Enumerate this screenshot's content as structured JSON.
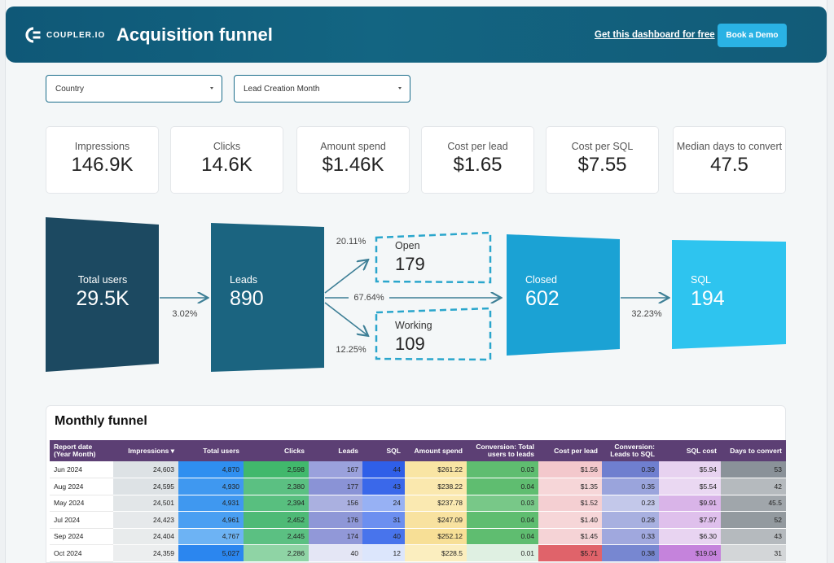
{
  "header": {
    "logo_text": "COUPLER.IO",
    "title": "Acquisition funnel",
    "link_label": "Get this dashboard for free",
    "demo_label": "Book a Demo"
  },
  "filters": {
    "country": "Country",
    "lead_month": "Lead Creation Month"
  },
  "kpis": [
    {
      "label": "Impressions",
      "value": "146.9K"
    },
    {
      "label": "Clicks",
      "value": "14.6K"
    },
    {
      "label": "Amount spend",
      "value": "$1.46K"
    },
    {
      "label": "Cost per lead",
      "value": "$1.65"
    },
    {
      "label": "Cost per SQL",
      "value": "$7.55"
    },
    {
      "label": "Median days to convert",
      "value": "47.5"
    }
  ],
  "funnel": {
    "total_users": {
      "label": "Total users",
      "value": "29.5K"
    },
    "leads": {
      "label": "Leads",
      "value": "890"
    },
    "open": {
      "label": "Open",
      "value": "179"
    },
    "working": {
      "label": "Working",
      "value": "109"
    },
    "closed": {
      "label": "Closed",
      "value": "602"
    },
    "sql": {
      "label": "SQL",
      "value": "194"
    },
    "rate_users_leads": "3.02%",
    "rate_open": "20.11%",
    "rate_closed": "67.64%",
    "rate_working": "12.25%",
    "rate_sql": "32.23%",
    "colors": {
      "total_users": "#1c4961",
      "leads": "#1b6480",
      "closed": "#1ba2d4",
      "sql": "#2ec4ef",
      "dashed": "#2aa6cc"
    }
  },
  "monthly": {
    "title": "Monthly funnel",
    "headers": [
      "Report date (Year Month)",
      "Impressions ▾",
      "Total users",
      "Clicks",
      "Leads",
      "SQL",
      "Amount spend",
      "Conversion: Total users to leads",
      "Cost per lead",
      "Conversion: Leads to SQL",
      "SQL cost",
      "Days to convert"
    ],
    "rows": [
      [
        "Jun 2024",
        "24,603",
        "4,870",
        "2,598",
        "167",
        "44",
        "$261.22",
        "0.03",
        "$1.56",
        "0.39",
        "$5.94",
        "53"
      ],
      [
        "Aug 2024",
        "24,595",
        "4,930",
        "2,380",
        "177",
        "43",
        "$238.22",
        "0.04",
        "$1.35",
        "0.35",
        "$5.54",
        "42"
      ],
      [
        "May 2024",
        "24,501",
        "4,931",
        "2,394",
        "156",
        "24",
        "$237.78",
        "0.03",
        "$1.52",
        "0.23",
        "$9.91",
        "45.5"
      ],
      [
        "Jul 2024",
        "24,423",
        "4,961",
        "2,452",
        "176",
        "31",
        "$247.09",
        "0.04",
        "$1.40",
        "0.28",
        "$7.97",
        "52"
      ],
      [
        "Sep 2024",
        "24,404",
        "4,767",
        "2,445",
        "174",
        "40",
        "$252.12",
        "0.04",
        "$1.45",
        "0.33",
        "$6.30",
        "43"
      ],
      [
        "Oct 2024",
        "24,359",
        "5,027",
        "2,286",
        "40",
        "12",
        "$228.5",
        "0.01",
        "$5.71",
        "0.38",
        "$19.04",
        "31"
      ]
    ],
    "cell_colors": [
      [
        "#dde2e5",
        "#2f8ff0",
        "#41b86c",
        "#9aa1dc",
        "#2f5fe8",
        "#f9e5a4",
        "#5fbd70",
        "#f3c8cc",
        "#6f7fcf",
        "#e7d2f0",
        "#8a9299"
      ],
      [
        "#dde2e5",
        "#3f98f0",
        "#5bc082",
        "#8a93d6",
        "#3a68ea",
        "#fae8ae",
        "#5fbd70",
        "#f6d6d8",
        "#9aa4dc",
        "#ead8f2",
        "#b5babe"
      ],
      [
        "#e2e6e8",
        "#3f98f0",
        "#58bf7f",
        "#aab0e0",
        "#97b1f4",
        "#fae9b1",
        "#78c888",
        "#f4cfd2",
        "#c3c8ea",
        "#d9b4e8",
        "#a0a6ab"
      ],
      [
        "#e6e9eb",
        "#4a9ff2",
        "#4eba76",
        "#8e97d7",
        "#6c8ff0",
        "#f8e2a0",
        "#5fbd70",
        "#f6d6d8",
        "#a8b0e0",
        "#dfc0ec",
        "#939a9f"
      ],
      [
        "#e8ebec",
        "#6db3f4",
        "#5bc082",
        "#9198d8",
        "#4874ec",
        "#f7df96",
        "#5fbd70",
        "#f5d3d6",
        "#a0a8de",
        "#e8d4f1",
        "#b5babe"
      ],
      [
        "#eceeef",
        "#2b86ef",
        "#8fd4a5",
        "#e4e6f5",
        "#dce6fc",
        "#fbeebf",
        "#dff0e2",
        "#e0636a",
        "#7787d1",
        "#c583dc",
        "#d3d6d8"
      ]
    ]
  }
}
